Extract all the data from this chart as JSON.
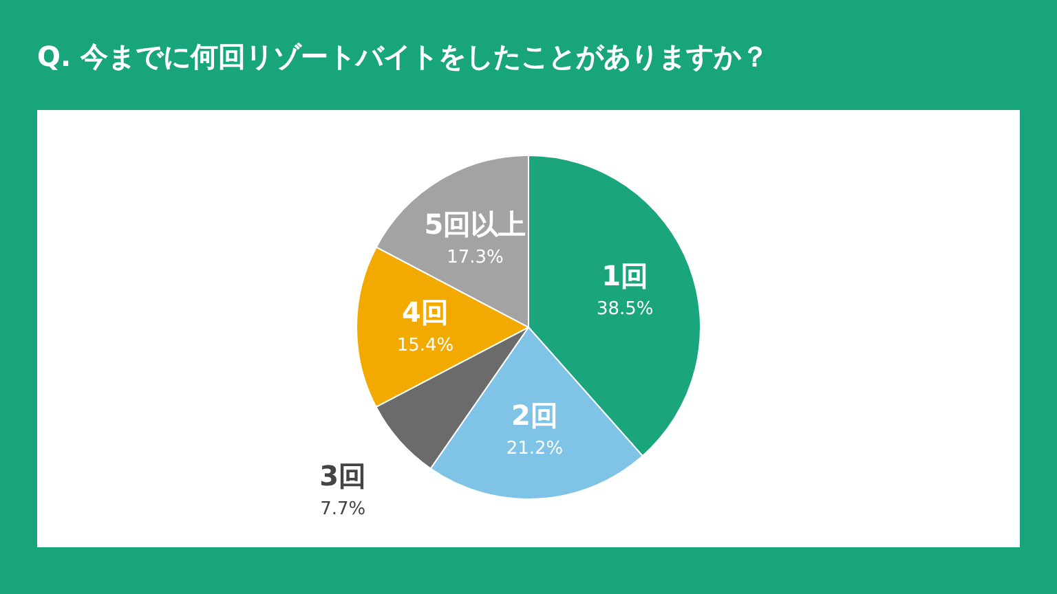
{
  "chart_data": {
    "type": "pie",
    "title": "Q. 今までに何回リゾートバイトをしたことがありますか？",
    "categories": [
      "1回",
      "2回",
      "3回",
      "4回",
      "5回以上"
    ],
    "values": [
      38.5,
      21.2,
      7.7,
      15.4,
      17.3
    ],
    "value_labels": [
      "38.5%",
      "21.2%",
      "7.7%",
      "15.4%",
      "17.3%"
    ],
    "colors": [
      "#1aa57c",
      "#7fc3e6",
      "#6b6b6b",
      "#f2a900",
      "#a3a3a3"
    ]
  }
}
